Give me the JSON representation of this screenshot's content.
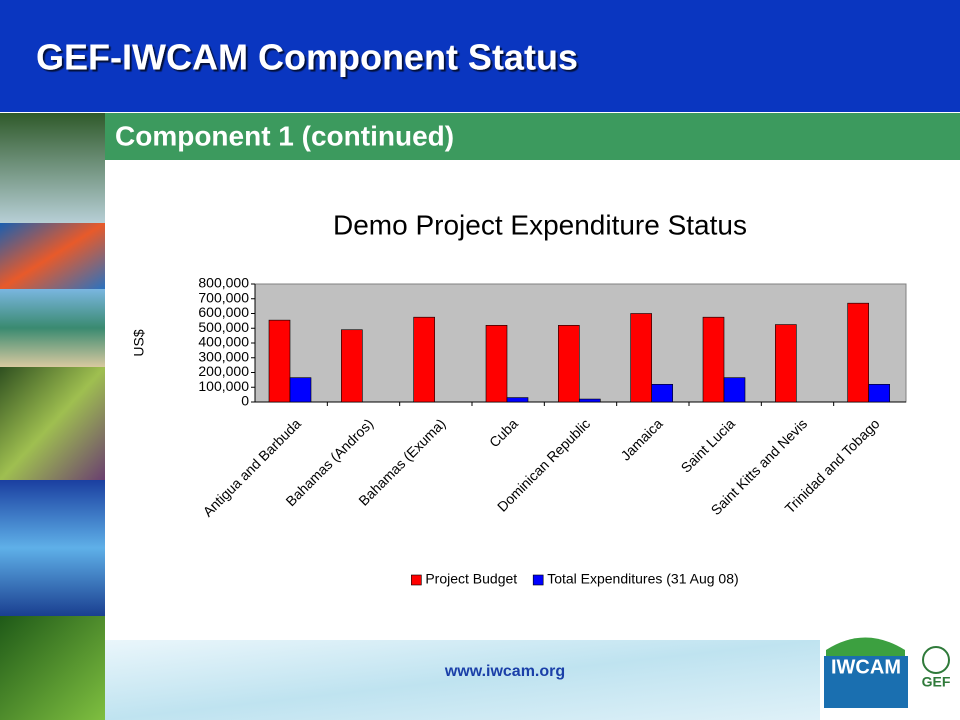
{
  "header": {
    "title": "GEF-IWCAM Component Status",
    "subtitle": "Component 1 (continued)"
  },
  "footer": {
    "url": "www.iwcam.org"
  },
  "logo": {
    "name": "IWCAM",
    "partner": "GEF"
  },
  "chart_data": {
    "type": "bar",
    "title": "Demo Project Expenditure Status",
    "y_label": "US$",
    "categories": [
      "Antigua and Barbuda",
      "Bahamas (Andros)",
      "Bahamas (Exuma)",
      "Cuba",
      "Dominican Republic",
      "Jamaica",
      "Saint Lucia",
      "Saint Kitts and Nevis",
      "Trinidad and Tobago"
    ],
    "series": [
      {
        "name": "Project Budget",
        "color": "#ff0000",
        "values": [
          555000,
          490000,
          575000,
          520000,
          520000,
          600000,
          575000,
          525000,
          670000
        ]
      },
      {
        "name": "Total Expenditures (31 Aug 08)",
        "color": "#0000ff",
        "values": [
          165000,
          0,
          0,
          30000,
          20000,
          120000,
          165000,
          0,
          120000
        ]
      }
    ],
    "ylim": [
      0,
      800000
    ],
    "yticks": [
      0,
      {
        "value": 100000,
        "label": "100,000"
      },
      {
        "value": 200000,
        "label": "200,000"
      },
      {
        "value": 300000,
        "label": "300,000"
      },
      {
        "value": 400000,
        "label": "400,000"
      },
      {
        "value": 500000,
        "label": "500,000"
      },
      {
        "value": 600000,
        "label": "600,000"
      },
      {
        "value": 700000,
        "label": "700,000"
      },
      {
        "value": 800000,
        "label": "800,000"
      }
    ],
    "grid": false,
    "legend": "bottom"
  }
}
